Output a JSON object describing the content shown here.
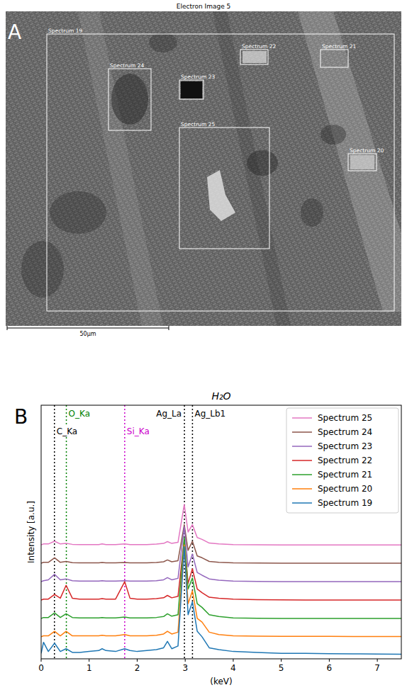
{
  "image": {
    "title": "Electron Image 5",
    "panel_label": "A",
    "scale_bar": "50µm",
    "regions": [
      {
        "label": "Spectrum 19"
      },
      {
        "label": "Spectrum 20"
      },
      {
        "label": "Spectrum 21"
      },
      {
        "label": "Spectrum 22"
      },
      {
        "label": "Spectrum 23"
      },
      {
        "label": "Spectrum 24"
      },
      {
        "label": "Spectrum 25"
      }
    ]
  },
  "chart_data": {
    "type": "line",
    "panel_label": "B",
    "title": "H₂O",
    "x_label": "(keV)",
    "y_label": "Intensity [a.u.]",
    "x": [
      0,
      0.05,
      0.15,
      0.28,
      0.4,
      0.52,
      0.65,
      0.8,
      1.0,
      1.2,
      1.27,
      1.35,
      1.55,
      1.74,
      1.85,
      2.0,
      2.2,
      2.4,
      2.55,
      2.63,
      2.72,
      2.85,
      2.98,
      3.06,
      3.15,
      3.25,
      3.35,
      3.5,
      3.7,
      4.0,
      4.5,
      5.0,
      5.5,
      6.0,
      6.5,
      7.0,
      7.5
    ],
    "series": [
      {
        "name": "Spectrum 25",
        "color": "#e377c2",
        "values": [
          6.2,
          6.25,
          6.25,
          6.4,
          6.25,
          6.28,
          6.23,
          6.22,
          6.22,
          6.22,
          6.25,
          6.22,
          6.22,
          6.25,
          6.22,
          6.22,
          6.22,
          6.24,
          6.28,
          6.38,
          6.28,
          6.34,
          8.4,
          6.9,
          7.3,
          6.6,
          6.5,
          6.3,
          6.25,
          6.22,
          6.21,
          6.2,
          6.2,
          6.2,
          6.2,
          6.2,
          6.2
        ]
      },
      {
        "name": "Spectrum 24",
        "color": "#8c564b",
        "values": [
          5.2,
          5.25,
          5.25,
          5.5,
          5.25,
          5.3,
          5.23,
          5.22,
          5.22,
          5.22,
          5.24,
          5.22,
          5.22,
          5.24,
          5.22,
          5.22,
          5.22,
          5.24,
          5.28,
          5.38,
          5.28,
          5.34,
          7.3,
          5.9,
          6.4,
          5.6,
          5.5,
          5.3,
          5.25,
          5.22,
          5.21,
          5.2,
          5.2,
          5.2,
          5.2,
          5.2,
          5.2
        ]
      },
      {
        "name": "Spectrum 23",
        "color": "#9467bd",
        "values": [
          4.2,
          4.25,
          4.3,
          4.6,
          4.3,
          4.35,
          4.25,
          4.23,
          4.23,
          4.23,
          4.25,
          4.23,
          4.23,
          4.25,
          4.23,
          4.23,
          4.23,
          4.25,
          4.3,
          4.42,
          4.3,
          4.38,
          7.2,
          5.0,
          5.7,
          4.7,
          4.55,
          4.35,
          4.28,
          4.23,
          4.21,
          4.2,
          4.2,
          4.2,
          4.2,
          4.2,
          4.2
        ]
      },
      {
        "name": "Spectrum 22",
        "color": "#d62728",
        "values": [
          3.2,
          3.25,
          3.25,
          3.5,
          3.3,
          4.0,
          3.3,
          3.25,
          3.25,
          3.25,
          3.28,
          3.25,
          3.25,
          4.2,
          3.3,
          3.25,
          3.25,
          3.28,
          3.32,
          3.45,
          3.32,
          3.4,
          6.5,
          4.1,
          4.9,
          3.8,
          3.6,
          3.35,
          3.3,
          3.25,
          3.22,
          3.21,
          3.2,
          3.2,
          3.2,
          3.2,
          3.2
        ]
      },
      {
        "name": "Spectrum 21",
        "color": "#2ca02c",
        "values": [
          2.2,
          2.25,
          2.25,
          2.5,
          2.25,
          2.45,
          2.25,
          2.23,
          2.23,
          2.23,
          2.25,
          2.23,
          2.23,
          2.27,
          2.23,
          2.23,
          2.23,
          2.25,
          2.3,
          2.45,
          2.32,
          2.4,
          6.6,
          3.8,
          4.4,
          3.0,
          2.8,
          2.4,
          2.3,
          2.23,
          2.21,
          2.2,
          2.2,
          2.2,
          2.2,
          2.2,
          2.2
        ]
      },
      {
        "name": "Spectrum 20",
        "color": "#ff7f0e",
        "values": [
          1.2,
          1.25,
          1.25,
          1.5,
          1.25,
          1.5,
          1.25,
          1.25,
          1.25,
          1.25,
          1.28,
          1.25,
          1.25,
          1.32,
          1.25,
          1.25,
          1.25,
          1.28,
          1.35,
          1.5,
          1.35,
          1.45,
          6.2,
          3.0,
          3.7,
          2.2,
          2.0,
          1.45,
          1.32,
          1.25,
          1.23,
          1.22,
          1.22,
          1.22,
          1.21,
          1.21,
          1.21
        ]
      },
      {
        "name": "Spectrum 19",
        "color": "#1f77b4",
        "values": [
          0.3,
          0.9,
          0.4,
          0.85,
          0.4,
          0.55,
          0.35,
          0.35,
          0.4,
          0.45,
          0.55,
          0.45,
          0.4,
          0.55,
          0.45,
          0.4,
          0.45,
          0.5,
          0.6,
          0.95,
          0.55,
          0.7,
          6.1,
          2.4,
          3.1,
          1.5,
          1.2,
          0.6,
          0.5,
          0.4,
          0.35,
          0.3,
          0.3,
          0.28,
          0.27,
          0.26,
          0.25
        ]
      }
    ],
    "reference_lines": [
      {
        "label": "C_Ka",
        "x": 0.277,
        "color": "#000000"
      },
      {
        "label": "O_Ka",
        "x": 0.525,
        "color": "#008000"
      },
      {
        "label": "Si_Ka",
        "x": 1.74,
        "color": "#cc00cc"
      },
      {
        "label": "Ag_La",
        "x": 2.984,
        "color": "#000000"
      },
      {
        "label": "Ag_Lb1",
        "x": 3.151,
        "color": "#000000"
      }
    ],
    "xlim": [
      0,
      7.5
    ],
    "xticks": [
      0,
      1,
      2,
      3,
      4,
      5,
      6,
      7
    ],
    "ylim": [
      0,
      13.8
    ],
    "tick_labels": "x",
    "grid": false,
    "legend": "upper right",
    "line_style": "solid"
  }
}
